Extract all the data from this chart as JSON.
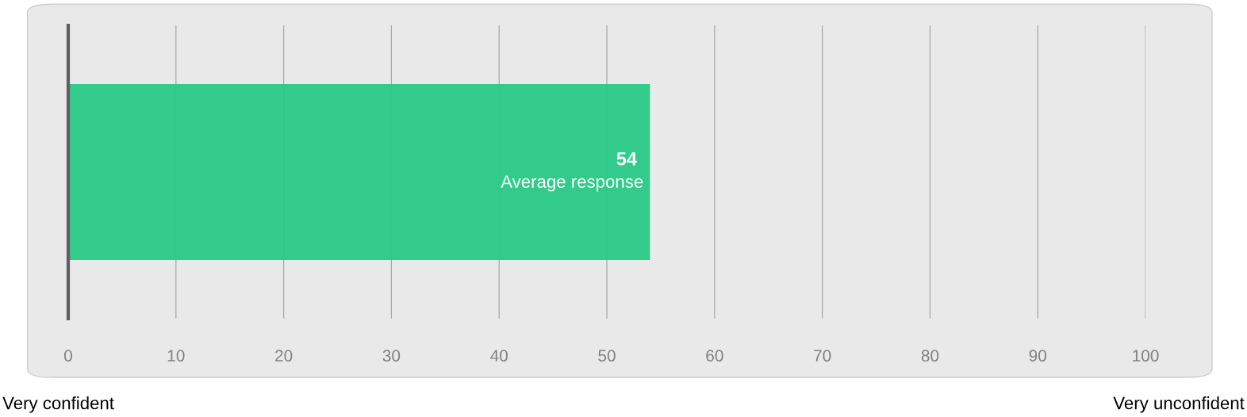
{
  "chart_data": {
    "type": "bar",
    "orientation": "horizontal",
    "categories": [
      null
    ],
    "values": [
      54
    ],
    "color": "#28c986",
    "xlim": [
      0,
      100
    ],
    "xticks": [
      0,
      10,
      20,
      30,
      40,
      50,
      60,
      70,
      80,
      90,
      100
    ],
    "grid": "x",
    "data_labels": true,
    "annotations": [
      {
        "text": "Average response",
        "x": 54
      },
      "Very confident",
      "Very unconfident"
    ]
  }
}
